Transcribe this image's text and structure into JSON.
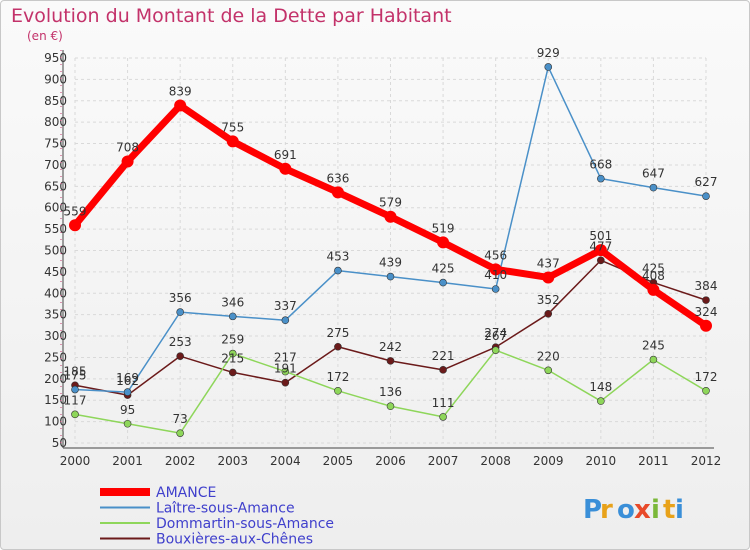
{
  "title": "Evolution du Montant de la Dette par Habitant",
  "unit": "(en €)",
  "brand": "Proxiti",
  "chart_data": {
    "type": "line",
    "title": "Evolution du Montant de la Dette par Habitant",
    "ylabel": "(en €)",
    "xlabel": "",
    "x": [
      "2000",
      "2001",
      "2002",
      "2003",
      "2004",
      "2005",
      "2006",
      "2007",
      "2008",
      "2009",
      "2010",
      "2011",
      "2012"
    ],
    "ylim": [
      50,
      950
    ],
    "yticks": [
      50,
      100,
      150,
      200,
      250,
      300,
      350,
      400,
      450,
      500,
      550,
      600,
      650,
      700,
      750,
      800,
      850,
      900,
      950
    ],
    "grid": true,
    "legend": "bottom-left",
    "series": [
      {
        "name": "AMANCE",
        "color": "#ff0000",
        "values": [
          559,
          708,
          839,
          755,
          691,
          636,
          579,
          519,
          456,
          437,
          501,
          408,
          324
        ]
      },
      {
        "name": "Laître-sous-Amance",
        "color": "#4a90c8",
        "values": [
          175,
          169,
          356,
          346,
          337,
          453,
          439,
          425,
          410,
          929,
          668,
          647,
          627
        ]
      },
      {
        "name": "Dommartin-sous-Amance",
        "color": "#8ed65a",
        "values": [
          117,
          95,
          73,
          259,
          217,
          172,
          136,
          111,
          267,
          220,
          148,
          245,
          172
        ]
      },
      {
        "name": "Bouxières-aux-Chênes",
        "color": "#6b1a1a",
        "values": [
          185,
          162,
          253,
          215,
          191,
          275,
          242,
          221,
          274,
          352,
          477,
          425,
          384
        ]
      }
    ]
  }
}
